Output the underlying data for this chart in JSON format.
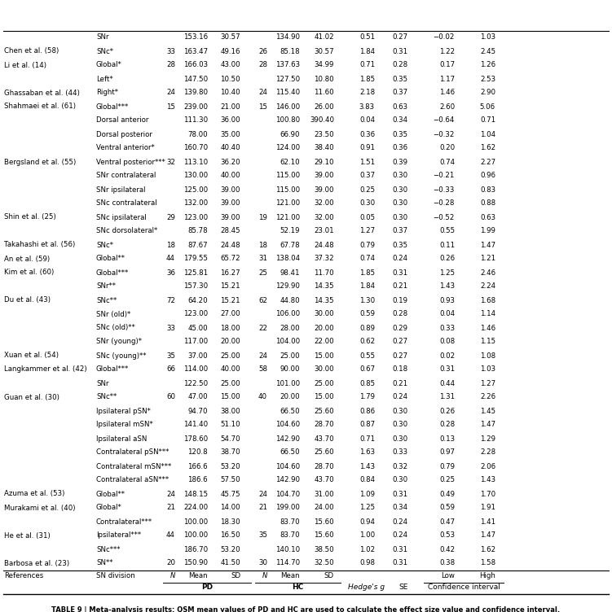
{
  "title": "TABLE 9 | Meta-analysis results: QSM mean values of PD and HC are used to calculate the effect size value and confidence interval.",
  "rows": [
    [
      "Barbosa et al. (23)",
      "SN**",
      "20",
      "150.90",
      "41.50",
      "30",
      "114.70",
      "32.50",
      "0.98",
      "0.31",
      "0.38",
      "1.58"
    ],
    [
      "",
      "SNc***",
      "",
      "186.70",
      "53.20",
      "",
      "140.10",
      "38.50",
      "1.02",
      "0.31",
      "0.42",
      "1.62"
    ],
    [
      "He et al. (31)",
      "Ipsilateral***",
      "44",
      "100.00",
      "16.50",
      "35",
      "83.70",
      "15.60",
      "1.00",
      "0.24",
      "0.53",
      "1.47"
    ],
    [
      "",
      "Contralateral***",
      "",
      "100.00",
      "18.30",
      "",
      "83.70",
      "15.60",
      "0.94",
      "0.24",
      "0.47",
      "1.41"
    ],
    [
      "Murakami et al. (40)",
      "Global*",
      "21",
      "224.00",
      "14.00",
      "21",
      "199.00",
      "24.00",
      "1.25",
      "0.34",
      "0.59",
      "1.91"
    ],
    [
      "Azuma et al. (53)",
      "Global**",
      "24",
      "148.15",
      "45.75",
      "24",
      "104.70",
      "31.00",
      "1.09",
      "0.31",
      "0.49",
      "1.70"
    ],
    [
      "",
      "Contralateral aSN***",
      "",
      "186.6",
      "57.50",
      "",
      "142.90",
      "43.70",
      "0.84",
      "0.30",
      "0.25",
      "1.43"
    ],
    [
      "",
      "Contralateral mSN***",
      "",
      "166.6",
      "53.20",
      "",
      "104.60",
      "28.70",
      "1.43",
      "0.32",
      "0.79",
      "2.06"
    ],
    [
      "",
      "Contralateral pSN***",
      "",
      "120.8",
      "38.70",
      "",
      "66.50",
      "25.60",
      "1.63",
      "0.33",
      "0.97",
      "2.28"
    ],
    [
      "",
      "Ipsilateral aSN",
      "",
      "178.60",
      "54.70",
      "",
      "142.90",
      "43.70",
      "0.71",
      "0.30",
      "0.13",
      "1.29"
    ],
    [
      "",
      "Ipsilateral mSN*",
      "",
      "141.40",
      "51.10",
      "",
      "104.60",
      "28.70",
      "0.87",
      "0.30",
      "0.28",
      "1.47"
    ],
    [
      "",
      "Ipsilateral pSN*",
      "",
      "94.70",
      "38.00",
      "",
      "66.50",
      "25.60",
      "0.86",
      "0.30",
      "0.26",
      "1.45"
    ],
    [
      "Guan et al. (30)",
      "SNc**",
      "60",
      "47.00",
      "15.00",
      "40",
      "20.00",
      "15.00",
      "1.79",
      "0.24",
      "1.31",
      "2.26"
    ],
    [
      "",
      "SNr",
      "",
      "122.50",
      "25.00",
      "",
      "101.00",
      "25.00",
      "0.85",
      "0.21",
      "0.44",
      "1.27"
    ],
    [
      "Langkammer et al. (42)",
      "Global***",
      "66",
      "114.00",
      "40.00",
      "58",
      "90.00",
      "30.00",
      "0.67",
      "0.18",
      "0.31",
      "1.03"
    ],
    [
      "Xuan et al. (54)",
      "SNc (young)**",
      "35",
      "37.00",
      "25.00",
      "24",
      "25.00",
      "15.00",
      "0.55",
      "0.27",
      "0.02",
      "1.08"
    ],
    [
      "",
      "SNr (young)*",
      "",
      "117.00",
      "20.00",
      "",
      "104.00",
      "22.00",
      "0.62",
      "0.27",
      "0.08",
      "1.15"
    ],
    [
      "",
      "SNc (old)**",
      "33",
      "45.00",
      "18.00",
      "22",
      "28.00",
      "20.00",
      "0.89",
      "0.29",
      "0.33",
      "1.46"
    ],
    [
      "",
      "SNr (old)*",
      "",
      "123.00",
      "27.00",
      "",
      "106.00",
      "30.00",
      "0.59",
      "0.28",
      "0.04",
      "1.14"
    ],
    [
      "Du et al. (43)",
      "SNc**",
      "72",
      "64.20",
      "15.21",
      "62",
      "44.80",
      "14.35",
      "1.30",
      "0.19",
      "0.93",
      "1.68"
    ],
    [
      "",
      "SNr**",
      "",
      "157.30",
      "15.21",
      "",
      "129.90",
      "14.35",
      "1.84",
      "0.21",
      "1.43",
      "2.24"
    ],
    [
      "Kim et al. (60)",
      "Global***",
      "36",
      "125.81",
      "16.27",
      "25",
      "98.41",
      "11.70",
      "1.85",
      "0.31",
      "1.25",
      "2.46"
    ],
    [
      "An et al. (59)",
      "Global**",
      "44",
      "179.55",
      "65.72",
      "31",
      "138.04",
      "37.32",
      "0.74",
      "0.24",
      "0.26",
      "1.21"
    ],
    [
      "Takahashi et al. (56)",
      "SNc*",
      "18",
      "87.67",
      "24.48",
      "18",
      "67.78",
      "24.48",
      "0.79",
      "0.35",
      "0.11",
      "1.47"
    ],
    [
      "",
      "SNc dorsolateral*",
      "",
      "85.78",
      "28.45",
      "",
      "52.19",
      "23.01",
      "1.27",
      "0.37",
      "0.55",
      "1.99"
    ],
    [
      "Shin et al. (25)",
      "SNc ipsilateral",
      "29",
      "123.00",
      "39.00",
      "19",
      "121.00",
      "32.00",
      "0.05",
      "0.30",
      "−0.52",
      "0.63"
    ],
    [
      "",
      "SNc contralateral",
      "",
      "132.00",
      "39.00",
      "",
      "121.00",
      "32.00",
      "0.30",
      "0.30",
      "−0.28",
      "0.88"
    ],
    [
      "",
      "SNr ipsilateral",
      "",
      "125.00",
      "39.00",
      "",
      "115.00",
      "39.00",
      "0.25",
      "0.30",
      "−0.33",
      "0.83"
    ],
    [
      "",
      "SNr contralateral",
      "",
      "130.00",
      "40.00",
      "",
      "115.00",
      "39.00",
      "0.37",
      "0.30",
      "−0.21",
      "0.96"
    ],
    [
      "Bergsland et al. (55)",
      "Ventral posterior***",
      "32",
      "113.10",
      "36.20",
      "",
      "62.10",
      "29.10",
      "1.51",
      "0.39",
      "0.74",
      "2.27"
    ],
    [
      "",
      "Ventral anterior*",
      "",
      "160.70",
      "40.40",
      "",
      "124.00",
      "38.40",
      "0.91",
      "0.36",
      "0.20",
      "1.62"
    ],
    [
      "",
      "Dorsal posterior",
      "",
      "78.00",
      "35.00",
      "",
      "66.90",
      "23.50",
      "0.36",
      "0.35",
      "−0.32",
      "1.04"
    ],
    [
      "",
      "Dorsal anterior",
      "",
      "111.30",
      "36.00",
      "",
      "100.80",
      "390.40",
      "0.04",
      "0.34",
      "−0.64",
      "0.71"
    ],
    [
      "Shahmaei et al. (61)",
      "Global***",
      "15",
      "239.00",
      "21.00",
      "15",
      "146.00",
      "26.00",
      "3.83",
      "0.63",
      "2.60",
      "5.06"
    ],
    [
      "Ghassaban et al. (44)",
      "Right*",
      "24",
      "139.80",
      "10.40",
      "24",
      "115.40",
      "11.60",
      "2.18",
      "0.37",
      "1.46",
      "2.90"
    ],
    [
      "",
      "Left*",
      "",
      "147.50",
      "10.50",
      "",
      "127.50",
      "10.80",
      "1.85",
      "0.35",
      "1.17",
      "2.53"
    ],
    [
      "Li et al. (14)",
      "Global*",
      "28",
      "166.03",
      "43.00",
      "28",
      "137.63",
      "34.99",
      "0.71",
      "0.28",
      "0.17",
      "1.26"
    ],
    [
      "Chen et al. (58)",
      "SNc*",
      "33",
      "163.47",
      "49.16",
      "26",
      "85.18",
      "30.57",
      "1.84",
      "0.31",
      "1.22",
      "2.45"
    ],
    [
      "",
      "SNr",
      "",
      "153.16",
      "30.57",
      "",
      "134.90",
      "41.02",
      "0.51",
      "0.27",
      "−0.02",
      "1.03"
    ]
  ],
  "bg_color": "#ffffff",
  "font_size": 6.2,
  "title_fontsize": 6.0
}
